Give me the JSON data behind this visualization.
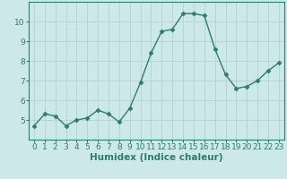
{
  "xlabel": "Humidex (Indice chaleur)",
  "x_values": [
    0,
    1,
    2,
    3,
    4,
    5,
    6,
    7,
    8,
    9,
    10,
    11,
    12,
    13,
    14,
    15,
    16,
    17,
    18,
    19,
    20,
    21,
    22,
    23
  ],
  "y_values": [
    4.7,
    5.3,
    5.2,
    4.7,
    5.0,
    5.1,
    5.5,
    5.3,
    4.9,
    5.6,
    6.9,
    8.4,
    9.5,
    9.6,
    10.4,
    10.4,
    10.3,
    8.6,
    7.3,
    6.6,
    6.7,
    7.0,
    7.5,
    7.9
  ],
  "line_color": "#2e7d6e",
  "marker": "D",
  "marker_size": 2.5,
  "line_width": 1.0,
  "background_color": "#cce8e8",
  "grid_color": "#b8d4d4",
  "ylim": [
    4.0,
    11.0
  ],
  "xlim": [
    -0.5,
    23.5
  ],
  "yticks": [
    5,
    6,
    7,
    8,
    9,
    10
  ],
  "xticks": [
    0,
    1,
    2,
    3,
    4,
    5,
    6,
    7,
    8,
    9,
    10,
    11,
    12,
    13,
    14,
    15,
    16,
    17,
    18,
    19,
    20,
    21,
    22,
    23
  ],
  "xtick_labels": [
    "0",
    "1",
    "2",
    "3",
    "4",
    "5",
    "6",
    "7",
    "8",
    "9",
    "10",
    "11",
    "12",
    "13",
    "14",
    "15",
    "16",
    "17",
    "18",
    "19",
    "20",
    "21",
    "22",
    "23"
  ],
  "tick_fontsize": 6.5,
  "xlabel_fontsize": 7.5,
  "spine_color": "#2e7d6e",
  "axis_bg": "#cce8e8"
}
